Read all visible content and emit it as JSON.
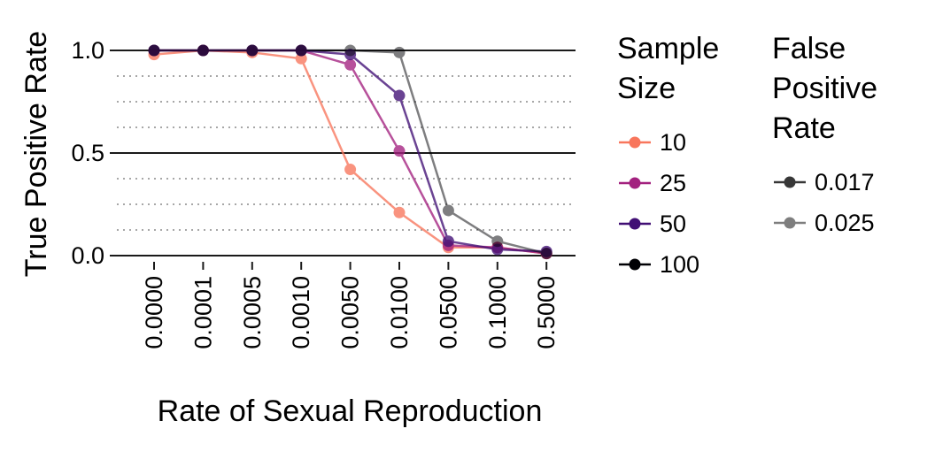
{
  "chart_data": {
    "type": "line",
    "xlabel": "Rate of Sexual Reproduction",
    "ylabel": "True Positive Rate",
    "categories": [
      "0.0000",
      "0.0001",
      "0.0005",
      "0.0010",
      "0.0050",
      "0.0100",
      "0.0500",
      "0.1000",
      "0.5000"
    ],
    "ylim": [
      0,
      1
    ],
    "y_ticks": [
      "0.0",
      "0.5",
      "1.0"
    ],
    "y_tick_values": [
      0,
      0.5,
      1.0
    ],
    "minor_grid_values": [
      0.125,
      0.25,
      0.375,
      0.625,
      0.75,
      0.875
    ],
    "grid": true,
    "legend_position": "right",
    "legends": [
      {
        "title_lines": [
          "Sample",
          "Size"
        ],
        "entries": [
          {
            "label": "10",
            "color": "#f8765c"
          },
          {
            "label": "25",
            "color": "#a3217f"
          },
          {
            "label": "50",
            "color": "#410f75"
          },
          {
            "label": "100",
            "color": "#000004"
          }
        ]
      },
      {
        "title_lines": [
          "False",
          "Positive",
          "Rate"
        ],
        "entries": [
          {
            "label": "0.017",
            "color": "#000000",
            "opacity": 0.78
          },
          {
            "label": "0.025",
            "color": "#000000",
            "opacity": 0.5
          }
        ]
      }
    ],
    "series": [
      {
        "sample_size": "10",
        "fpr": "0.017",
        "color": "#f8765c",
        "opacity": 0.78,
        "values": [
          0.98,
          1.0,
          0.99,
          0.96,
          0.42,
          0.21,
          0.04,
          0.04,
          0.01
        ]
      },
      {
        "sample_size": "25",
        "fpr": "0.017",
        "color": "#a3217f",
        "opacity": 0.78,
        "values": [
          1.0,
          1.0,
          1.0,
          1.0,
          0.93,
          0.51,
          0.05,
          0.04,
          0.01
        ]
      },
      {
        "sample_size": "50",
        "fpr": "0.017",
        "color": "#410f75",
        "opacity": 0.78,
        "values": [
          1.0,
          1.0,
          1.0,
          1.0,
          0.98,
          0.78,
          0.07,
          0.03,
          0.02
        ]
      },
      {
        "sample_size": "100",
        "fpr": "0.025",
        "color": "#000004",
        "opacity": 0.5,
        "values": [
          1.0,
          1.0,
          1.0,
          1.0,
          1.0,
          0.99,
          0.22,
          0.07,
          0.01
        ]
      }
    ]
  }
}
